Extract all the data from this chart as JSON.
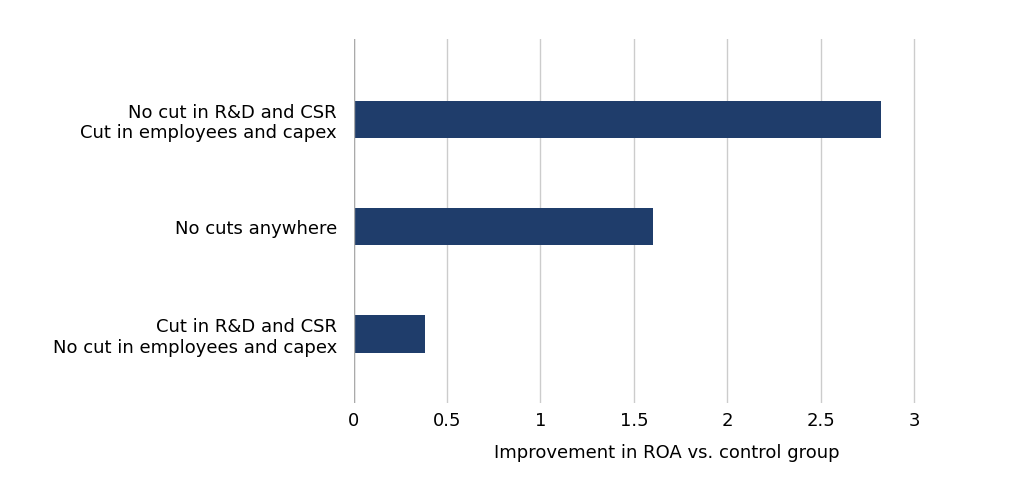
{
  "categories": [
    "Cut in R&D and CSR\nNo cut in employees and capex",
    "No cuts anywhere",
    "No cut in R&D and CSR\nCut in employees and capex"
  ],
  "values": [
    0.38,
    1.6,
    2.82
  ],
  "bar_color": "#1f3d6b",
  "xlabel": "Improvement in ROA vs. control group",
  "xlim": [
    0,
    3.35
  ],
  "xticks": [
    0,
    0.5,
    1,
    1.5,
    2,
    2.5,
    3
  ],
  "xticklabels": [
    "0",
    "0.5",
    "1",
    "1.5",
    "2",
    "2.5",
    "3"
  ],
  "background_color": "#ffffff",
  "grid_color": "#cccccc",
  "bar_height": 0.35,
  "label_fontsize": 13,
  "xlabel_fontsize": 13
}
